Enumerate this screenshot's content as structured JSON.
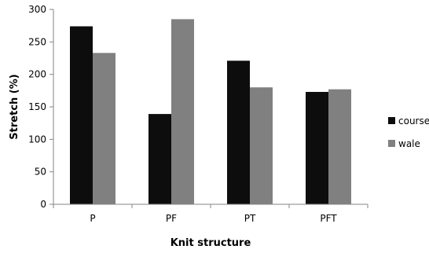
{
  "chart_data": {
    "type": "bar",
    "title": "",
    "xlabel": "Knit structure",
    "ylabel": "Stretch  (%)",
    "categories": [
      "P",
      "PF",
      "PT",
      "PFT"
    ],
    "series": [
      {
        "name": "course",
        "values": [
          274,
          139,
          221,
          173
        ],
        "color": "#0d0d0d"
      },
      {
        "name": "wale",
        "values": [
          233,
          285,
          180,
          177
        ],
        "color": "#808080"
      }
    ],
    "ylim": [
      0,
      300
    ],
    "yticks": [
      "0",
      "50",
      "100",
      "150",
      "200",
      "250",
      "300"
    ],
    "grid": false,
    "legend_position": "right"
  }
}
